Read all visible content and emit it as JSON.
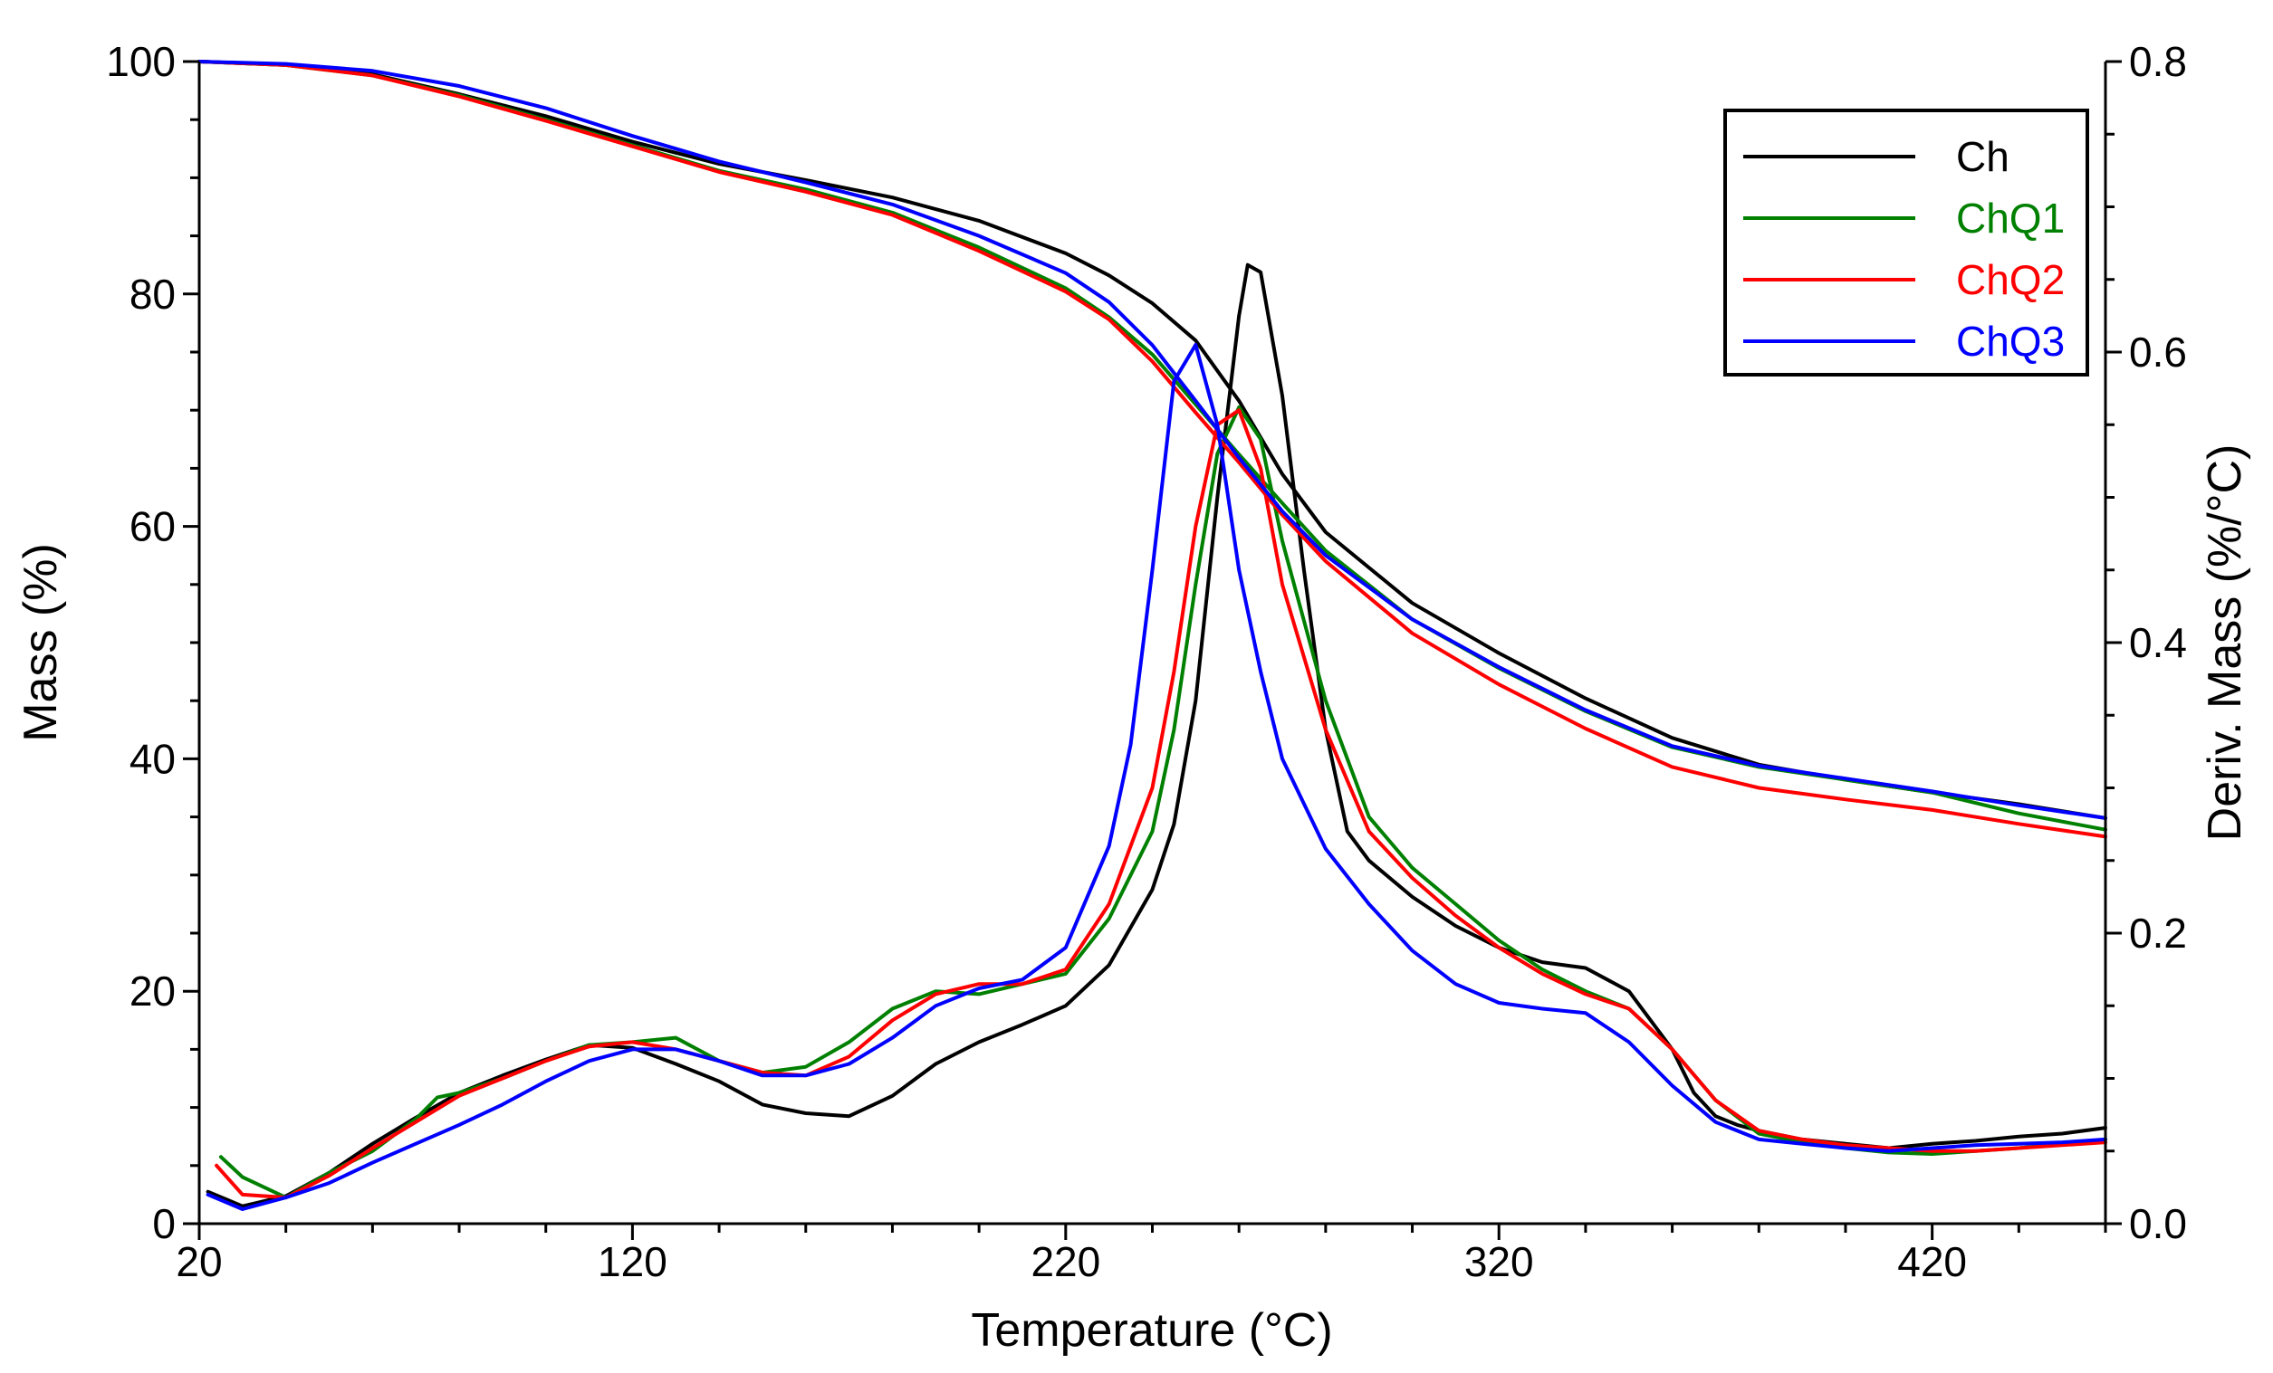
{
  "chart_data": {
    "type": "line",
    "title": "",
    "xlabel": "Temperature (°C)",
    "ylabel": "Mass (%)",
    "y2label": "Deriv. Mass (%/°C)",
    "xlim": [
      20,
      460
    ],
    "ylim": [
      0,
      100
    ],
    "y2lim": [
      0,
      0.8
    ],
    "x_ticks": [
      20,
      120,
      220,
      320,
      420
    ],
    "y_ticks": [
      0,
      20,
      40,
      60,
      80,
      100
    ],
    "y2_ticks": [
      "0.0",
      "0.2",
      "0.4",
      "0.6",
      "0.8"
    ],
    "legend_position": "top-right",
    "grid": false,
    "series": [
      {
        "name": "Ch",
        "color": "#000000",
        "mass": {
          "x": [
            20,
            40,
            60,
            80,
            100,
            120,
            140,
            160,
            180,
            200,
            220,
            230,
            240,
            250,
            260,
            270,
            280,
            300,
            320,
            340,
            360,
            380,
            400,
            420,
            440,
            460
          ],
          "y": [
            100,
            99.7,
            98.9,
            97.2,
            95.3,
            93.1,
            91.2,
            89.8,
            88.3,
            86.3,
            83.5,
            81.6,
            79.2,
            76.0,
            70.8,
            64.5,
            59.5,
            53.4,
            49.1,
            45.2,
            41.8,
            39.5,
            38.2,
            37.1,
            36.1,
            34.9
          ]
        },
        "deriv": {
          "x": [
            22,
            30,
            40,
            50,
            60,
            70,
            80,
            90,
            100,
            110,
            120,
            130,
            140,
            150,
            160,
            170,
            180,
            190,
            200,
            210,
            220,
            230,
            240,
            245,
            250,
            255,
            260,
            262,
            265,
            270,
            275,
            280,
            285,
            290,
            300,
            310,
            320,
            330,
            340,
            350,
            360,
            365,
            370,
            375,
            380,
            390,
            400,
            410,
            420,
            430,
            440,
            450,
            460
          ],
          "y": [
            0.022,
            0.012,
            0.019,
            0.035,
            0.055,
            0.073,
            0.09,
            0.102,
            0.113,
            0.123,
            0.121,
            0.11,
            0.098,
            0.082,
            0.076,
            0.074,
            0.088,
            0.11,
            0.125,
            0.137,
            0.15,
            0.178,
            0.23,
            0.275,
            0.36,
            0.5,
            0.625,
            0.66,
            0.655,
            0.57,
            0.45,
            0.34,
            0.27,
            0.25,
            0.225,
            0.205,
            0.19,
            0.18,
            0.176,
            0.16,
            0.12,
            0.09,
            0.074,
            0.068,
            0.064,
            0.058,
            0.055,
            0.052,
            0.055,
            0.057,
            0.06,
            0.062,
            0.066
          ]
        }
      },
      {
        "name": "ChQ1",
        "color": "#008000",
        "mass": {
          "x": [
            20,
            40,
            60,
            80,
            100,
            120,
            140,
            160,
            180,
            200,
            220,
            230,
            240,
            250,
            260,
            270,
            280,
            300,
            320,
            340,
            360,
            380,
            400,
            420,
            440,
            460
          ],
          "y": [
            100,
            99.7,
            98.8,
            97.1,
            95.0,
            92.8,
            90.6,
            89.0,
            87.0,
            84.0,
            80.5,
            78.0,
            74.8,
            70.5,
            66.2,
            62.0,
            57.9,
            52.0,
            47.8,
            44.1,
            41.0,
            39.3,
            38.2,
            37.1,
            35.3,
            33.9
          ]
        },
        "deriv": {
          "x": [
            25,
            30,
            40,
            50,
            60,
            70,
            75,
            80,
            90,
            100,
            110,
            120,
            130,
            140,
            150,
            160,
            170,
            180,
            190,
            200,
            210,
            220,
            230,
            240,
            245,
            250,
            255,
            260,
            265,
            270,
            280,
            290,
            300,
            310,
            320,
            330,
            340,
            350,
            360,
            370,
            380,
            390,
            400,
            410,
            420,
            430,
            440,
            450,
            460
          ],
          "y": [
            0.046,
            0.032,
            0.018,
            0.035,
            0.05,
            0.072,
            0.087,
            0.09,
            0.1,
            0.112,
            0.123,
            0.125,
            0.128,
            0.112,
            0.104,
            0.108,
            0.125,
            0.148,
            0.16,
            0.158,
            0.165,
            0.172,
            0.21,
            0.27,
            0.34,
            0.44,
            0.53,
            0.562,
            0.54,
            0.47,
            0.36,
            0.28,
            0.245,
            0.22,
            0.195,
            0.175,
            0.16,
            0.148,
            0.12,
            0.085,
            0.062,
            0.056,
            0.052,
            0.049,
            0.048,
            0.05,
            0.052,
            0.055,
            0.058
          ]
        }
      },
      {
        "name": "ChQ2",
        "color": "#ff0000",
        "mass": {
          "x": [
            20,
            40,
            60,
            80,
            100,
            120,
            140,
            160,
            180,
            200,
            220,
            230,
            240,
            250,
            260,
            270,
            280,
            300,
            320,
            340,
            360,
            380,
            400,
            420,
            440,
            460
          ],
          "y": [
            100,
            99.7,
            98.8,
            97.0,
            94.9,
            92.7,
            90.5,
            88.8,
            86.8,
            83.7,
            80.2,
            77.8,
            74.2,
            69.8,
            65.5,
            61.0,
            57.0,
            50.8,
            46.4,
            42.6,
            39.3,
            37.5,
            36.5,
            35.6,
            34.4,
            33.3
          ]
        },
        "deriv": {
          "x": [
            24,
            30,
            40,
            50,
            60,
            70,
            80,
            90,
            100,
            110,
            120,
            130,
            140,
            150,
            160,
            170,
            180,
            190,
            200,
            210,
            220,
            230,
            240,
            245,
            250,
            255,
            260,
            265,
            270,
            280,
            290,
            300,
            310,
            320,
            330,
            340,
            350,
            360,
            370,
            380,
            390,
            400,
            410,
            420,
            430,
            440,
            450,
            460
          ],
          "y": [
            0.04,
            0.02,
            0.018,
            0.033,
            0.052,
            0.07,
            0.088,
            0.1,
            0.112,
            0.122,
            0.125,
            0.12,
            0.112,
            0.104,
            0.102,
            0.115,
            0.14,
            0.158,
            0.165,
            0.165,
            0.175,
            0.22,
            0.3,
            0.38,
            0.48,
            0.55,
            0.56,
            0.52,
            0.44,
            0.34,
            0.27,
            0.238,
            0.212,
            0.19,
            0.172,
            0.158,
            0.148,
            0.12,
            0.085,
            0.064,
            0.058,
            0.054,
            0.052,
            0.05,
            0.05,
            0.052,
            0.054,
            0.056
          ]
        }
      },
      {
        "name": "ChQ3",
        "color": "#0000ff",
        "mass": {
          "x": [
            20,
            40,
            60,
            80,
            100,
            120,
            140,
            160,
            180,
            200,
            220,
            230,
            240,
            250,
            260,
            270,
            280,
            300,
            320,
            340,
            360,
            380,
            400,
            420,
            440,
            460
          ],
          "y": [
            100,
            99.8,
            99.2,
            97.9,
            96.0,
            93.6,
            91.4,
            89.6,
            87.7,
            85.0,
            81.8,
            79.3,
            75.6,
            70.8,
            65.9,
            61.3,
            57.5,
            52.0,
            47.9,
            44.2,
            41.1,
            39.4,
            38.3,
            37.2,
            36.0,
            34.9
          ]
        },
        "deriv": {
          "x": [
            22,
            30,
            40,
            50,
            60,
            70,
            80,
            90,
            100,
            110,
            120,
            130,
            140,
            150,
            160,
            170,
            180,
            190,
            200,
            210,
            220,
            230,
            235,
            240,
            245,
            250,
            255,
            260,
            265,
            270,
            280,
            290,
            300,
            310,
            320,
            330,
            340,
            350,
            360,
            370,
            380,
            390,
            400,
            410,
            420,
            430,
            440,
            450,
            460
          ],
          "y": [
            0.02,
            0.01,
            0.018,
            0.028,
            0.042,
            0.055,
            0.068,
            0.082,
            0.098,
            0.112,
            0.12,
            0.12,
            0.112,
            0.102,
            0.102,
            0.11,
            0.128,
            0.15,
            0.162,
            0.168,
            0.19,
            0.26,
            0.33,
            0.45,
            0.58,
            0.605,
            0.55,
            0.45,
            0.38,
            0.32,
            0.258,
            0.22,
            0.188,
            0.165,
            0.152,
            0.148,
            0.145,
            0.125,
            0.095,
            0.07,
            0.058,
            0.055,
            0.052,
            0.05,
            0.052,
            0.054,
            0.055,
            0.056,
            0.058
          ]
        }
      }
    ]
  }
}
